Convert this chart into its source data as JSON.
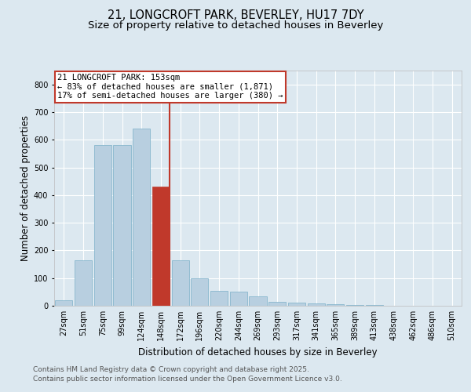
{
  "title_line1": "21, LONGCROFT PARK, BEVERLEY, HU17 7DY",
  "title_line2": "Size of property relative to detached houses in Beverley",
  "xlabel": "Distribution of detached houses by size in Beverley",
  "ylabel": "Number of detached properties",
  "bin_labels": [
    "27sqm",
    "51sqm",
    "75sqm",
    "99sqm",
    "124sqm",
    "148sqm",
    "172sqm",
    "196sqm",
    "220sqm",
    "244sqm",
    "269sqm",
    "293sqm",
    "317sqm",
    "341sqm",
    "365sqm",
    "389sqm",
    "413sqm",
    "438sqm",
    "462sqm",
    "486sqm",
    "510sqm"
  ],
  "bar_values": [
    20,
    165,
    580,
    580,
    640,
    430,
    165,
    100,
    55,
    50,
    35,
    15,
    10,
    8,
    5,
    3,
    3,
    1,
    0,
    0,
    1
  ],
  "highlight_index": 5,
  "bar_color_normal": "#b8cfe0",
  "bar_edgecolor": "#7aafc8",
  "highlight_bar_color": "#c0392b",
  "annotation_text": "21 LONGCROFT PARK: 153sqm\n← 83% of detached houses are smaller (1,871)\n17% of semi-detached houses are larger (380) →",
  "annotation_box_color": "#ffffff",
  "annotation_box_edge": "#c0392b",
  "ylim_max": 850,
  "yticks": [
    0,
    100,
    200,
    300,
    400,
    500,
    600,
    700,
    800
  ],
  "bg_color": "#dce8f0",
  "title_fontsize": 10.5,
  "subtitle_fontsize": 9.5,
  "axis_label_fontsize": 8.5,
  "tick_fontsize": 7,
  "annotation_fontsize": 7.5,
  "footer_fontsize": 6.5,
  "footer_line1": "Contains HM Land Registry data © Crown copyright and database right 2025.",
  "footer_line2": "Contains public sector information licensed under the Open Government Licence v3.0."
}
